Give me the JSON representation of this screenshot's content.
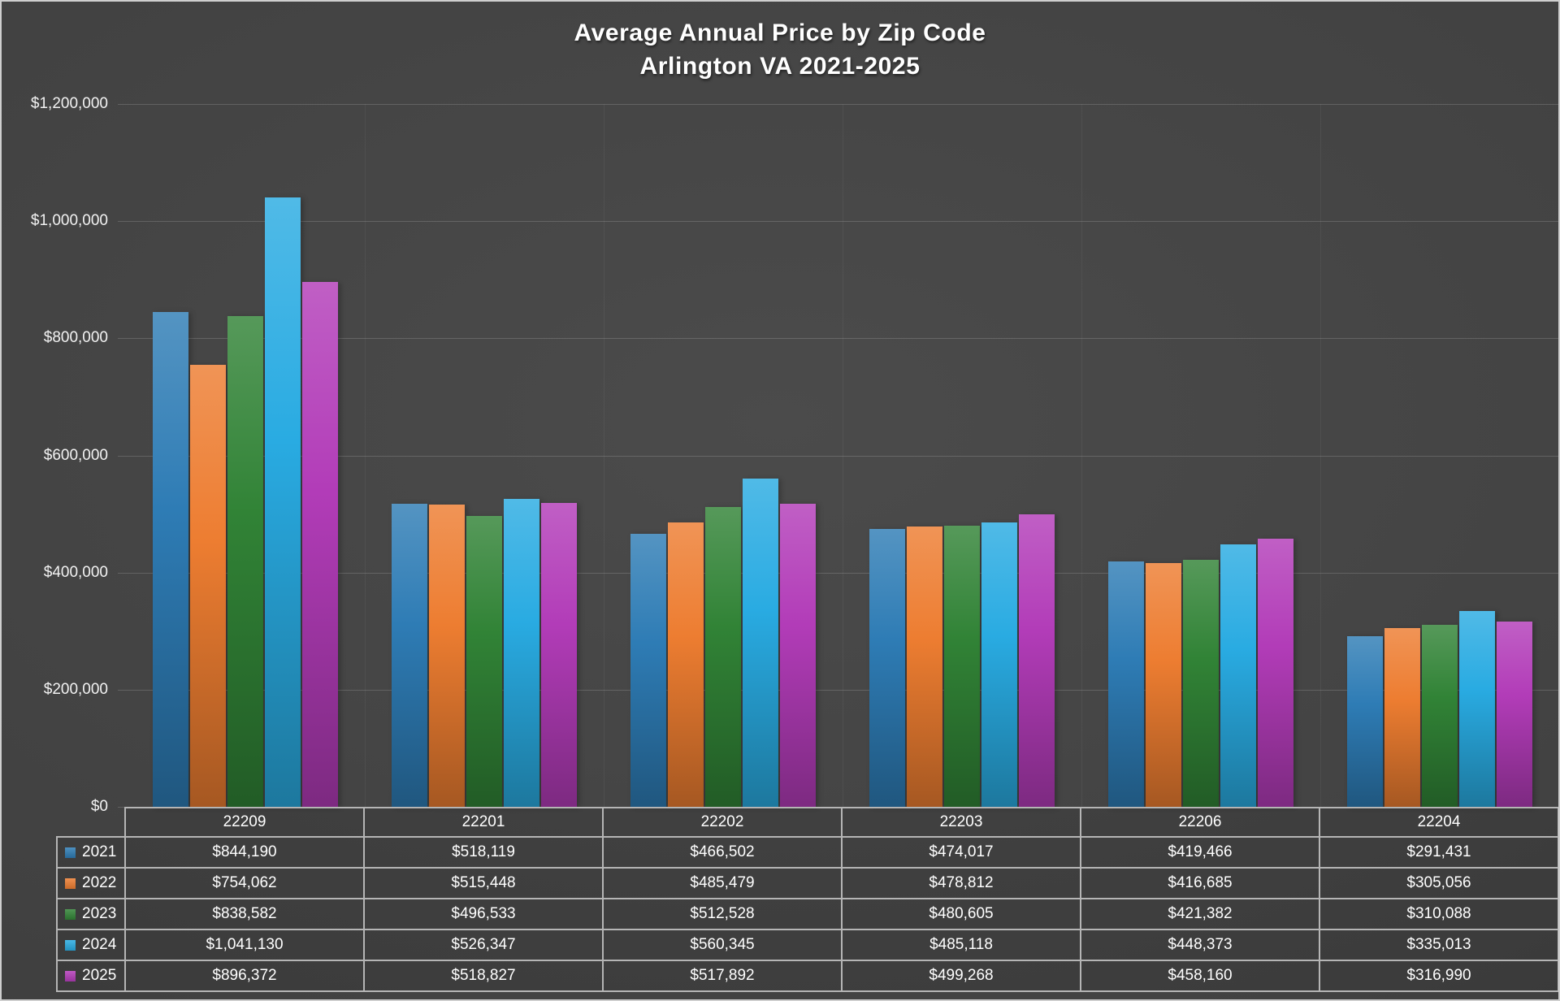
{
  "chart_data": {
    "type": "bar",
    "title": "Average Annual Price by Zip Code",
    "subtitle": "Arlington VA 2021-2025",
    "categories": [
      "22209",
      "22201",
      "22202",
      "22203",
      "22206",
      "22204"
    ],
    "series": [
      {
        "name": "2021",
        "color": "#2E7CB5",
        "values": [
          844190,
          518119,
          466502,
          474017,
          419466,
          291431
        ]
      },
      {
        "name": "2022",
        "color": "#ED7D31",
        "values": [
          754062,
          515448,
          485479,
          478812,
          416685,
          305056
        ]
      },
      {
        "name": "2023",
        "color": "#318336",
        "values": [
          838582,
          496533,
          512528,
          480605,
          421382,
          310088
        ]
      },
      {
        "name": "2024",
        "color": "#29ABE2",
        "values": [
          1041130,
          526347,
          560345,
          485118,
          448373,
          335013
        ]
      },
      {
        "name": "2025",
        "color": "#B23CB8",
        "values": [
          896372,
          518827,
          517892,
          499268,
          458160,
          316990
        ]
      }
    ],
    "ylim": [
      0,
      1200000
    ],
    "y_ticks": [
      {
        "value": 1200000,
        "label": "$1,200,000"
      },
      {
        "value": 1000000,
        "label": "$1,000,000"
      },
      {
        "value": 800000,
        "label": "$800,000"
      },
      {
        "value": 600000,
        "label": "$600,000"
      },
      {
        "value": 400000,
        "label": "$400,000"
      },
      {
        "value": 200000,
        "label": "$200,000"
      },
      {
        "value": 0,
        "label": "$0"
      }
    ],
    "value_prefix": "$",
    "grid": true,
    "legend_position": "table-left",
    "xlabel": "",
    "ylabel": ""
  }
}
